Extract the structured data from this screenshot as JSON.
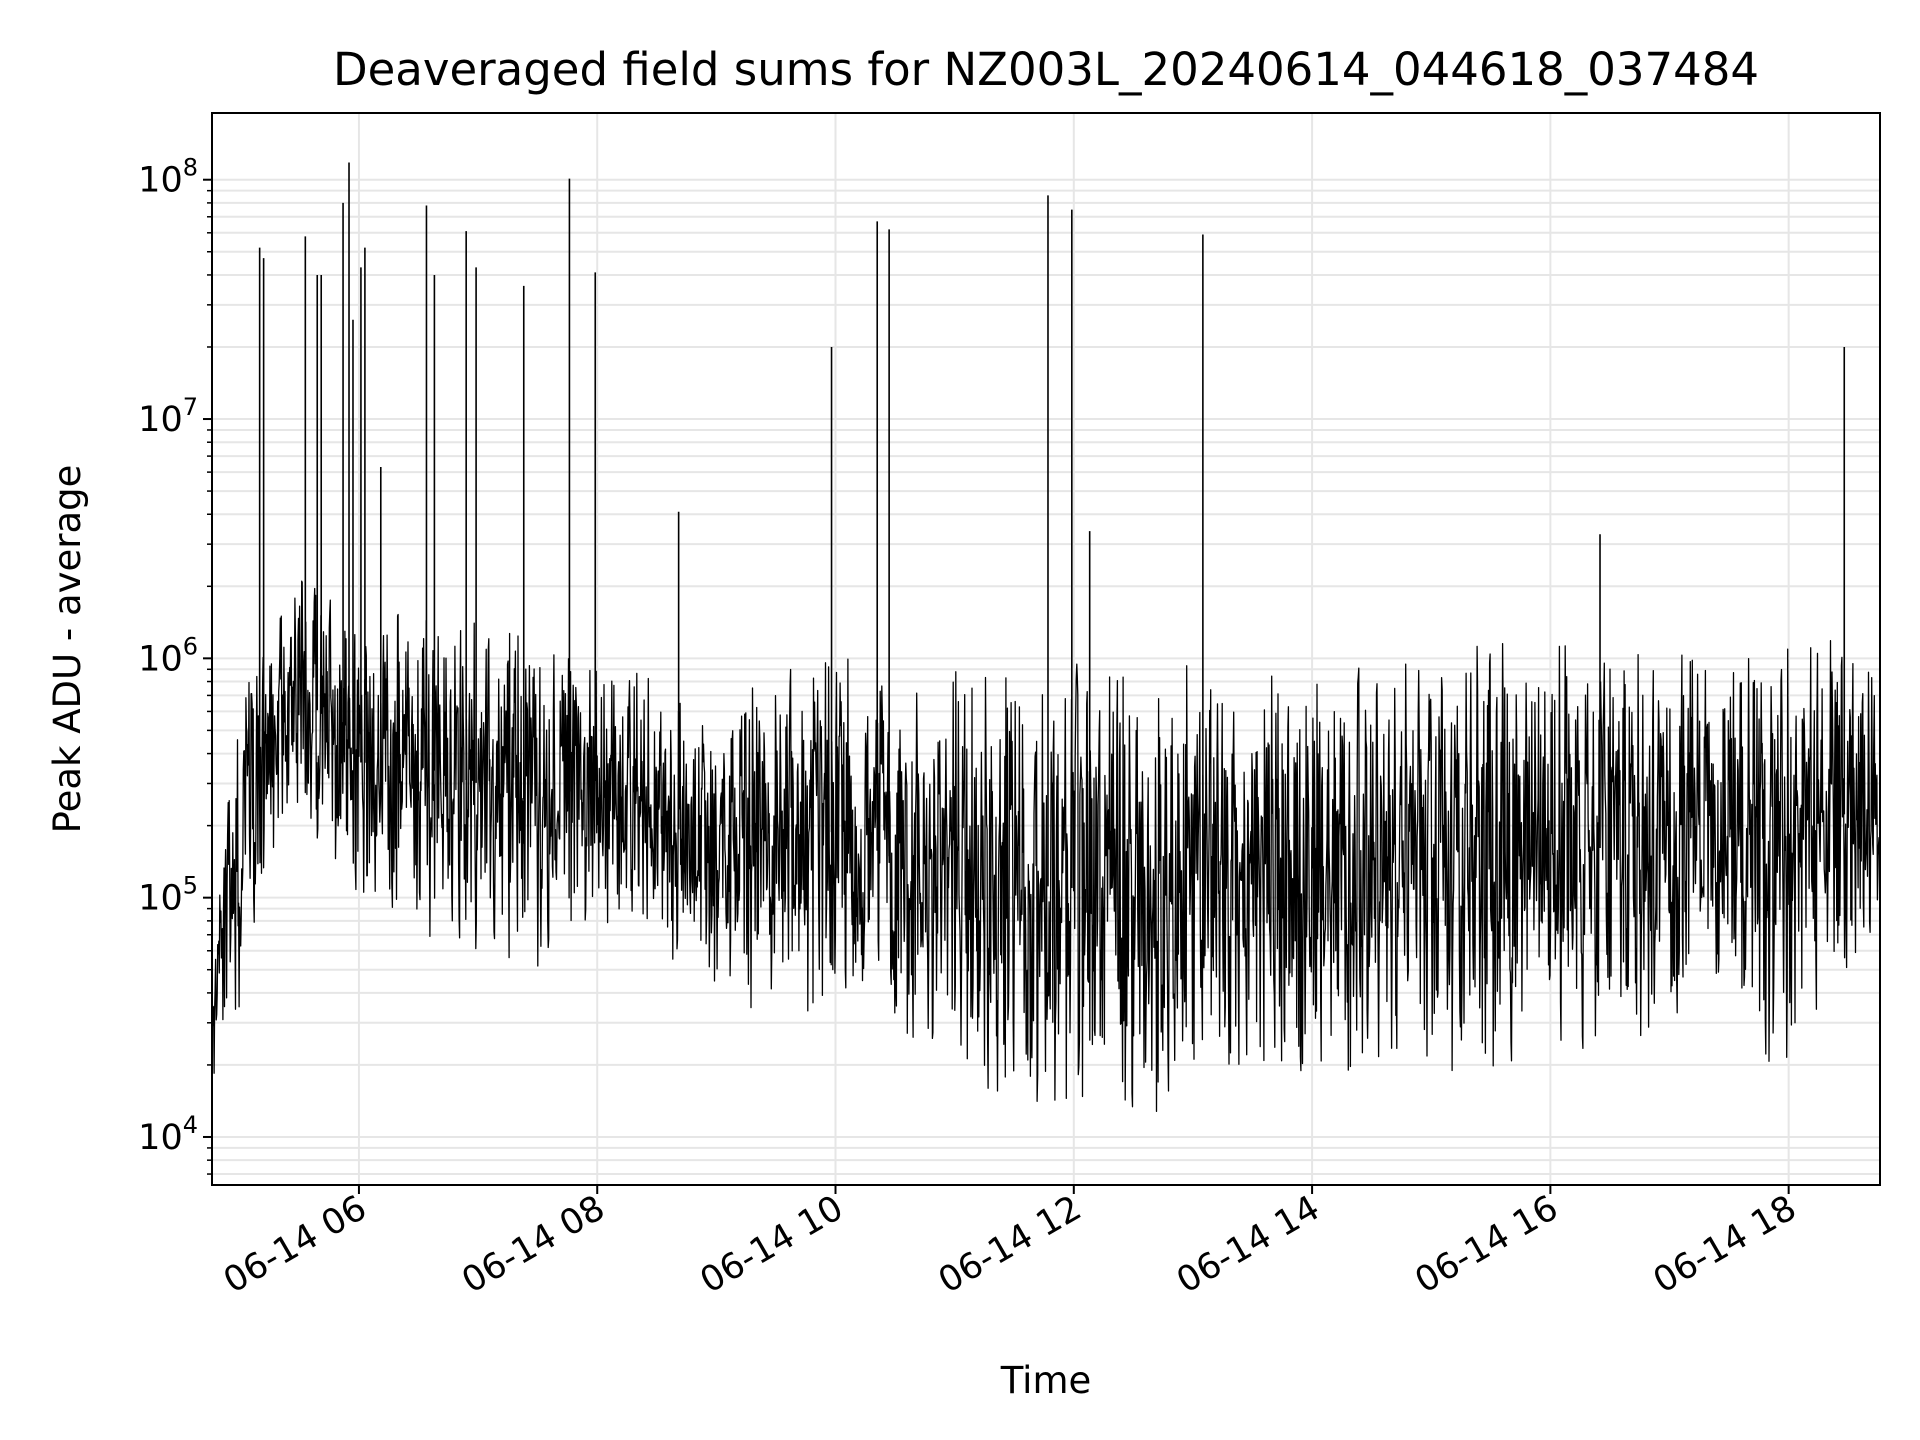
{
  "chart_data": {
    "type": "line",
    "title": "Deaveraged field sums for NZ003L_20240614_044618_037484",
    "xlabel": "Time",
    "ylabel": "Peak ADU - average",
    "yscale": "log",
    "ylim": [
      6300,
      190000000
    ],
    "xlim": [
      "2024-06-14 04:46",
      "2024-06-14 18:46"
    ],
    "grid": true,
    "line_color": "#000000",
    "grid_color": "#e6e6e6",
    "x_ticks": [
      {
        "value": "2024-06-14 06:00",
        "label": "06-14 06"
      },
      {
        "value": "2024-06-14 08:00",
        "label": "06-14 08"
      },
      {
        "value": "2024-06-14 10:00",
        "label": "06-14 10"
      },
      {
        "value": "2024-06-14 12:00",
        "label": "06-14 12"
      },
      {
        "value": "2024-06-14 14:00",
        "label": "06-14 14"
      },
      {
        "value": "2024-06-14 16:00",
        "label": "06-14 16"
      },
      {
        "value": "2024-06-14 18:00",
        "label": "06-14 18"
      }
    ],
    "y_ticks": [
      {
        "value": 10000,
        "base": "10",
        "exp": "4"
      },
      {
        "value": 100000,
        "base": "10",
        "exp": "5"
      },
      {
        "value": 1000000,
        "base": "10",
        "exp": "6"
      },
      {
        "value": 10000000,
        "base": "10",
        "exp": "7"
      },
      {
        "value": 100000000,
        "base": "10",
        "exp": "8"
      }
    ],
    "series": [
      {
        "envelope": [
          {
            "t": "2024-06-14 04:46",
            "lo": 18000,
            "hi": 60000
          },
          {
            "t": "2024-06-14 05:00",
            "lo": 25000,
            "hi": 900000
          },
          {
            "t": "2024-06-14 05:15",
            "lo": 150000,
            "hi": 1500000
          },
          {
            "t": "2024-06-14 05:30",
            "lo": 200000,
            "hi": 2500000
          },
          {
            "t": "2024-06-14 05:45",
            "lo": 150000,
            "hi": 2000000
          },
          {
            "t": "2024-06-14 06:00",
            "lo": 90000,
            "hi": 1500000
          },
          {
            "t": "2024-06-14 06:30",
            "lo": 70000,
            "hi": 1800000
          },
          {
            "t": "2024-06-14 07:00",
            "lo": 60000,
            "hi": 1500000
          },
          {
            "t": "2024-06-14 07:30",
            "lo": 50000,
            "hi": 1200000
          },
          {
            "t": "2024-06-14 08:00",
            "lo": 80000,
            "hi": 1200000
          },
          {
            "t": "2024-06-14 08:30",
            "lo": 60000,
            "hi": 800000
          },
          {
            "t": "2024-06-14 09:00",
            "lo": 40000,
            "hi": 600000
          },
          {
            "t": "2024-06-14 09:30",
            "lo": 30000,
            "hi": 900000
          },
          {
            "t": "2024-06-14 10:00",
            "lo": 30000,
            "hi": 1200000
          },
          {
            "t": "2024-06-14 10:30",
            "lo": 30000,
            "hi": 700000
          },
          {
            "t": "2024-06-14 11:00",
            "lo": 15000,
            "hi": 900000
          },
          {
            "t": "2024-06-14 11:30",
            "lo": 13000,
            "hi": 1000000
          },
          {
            "t": "2024-06-14 12:00",
            "lo": 12000,
            "hi": 1000000
          },
          {
            "t": "2024-06-14 12:30",
            "lo": 12000,
            "hi": 950000
          },
          {
            "t": "2024-06-14 13:00",
            "lo": 13000,
            "hi": 950000
          },
          {
            "t": "2024-06-14 13:30",
            "lo": 14000,
            "hi": 950000
          },
          {
            "t": "2024-06-14 14:00",
            "lo": 15000,
            "hi": 950000
          },
          {
            "t": "2024-06-14 14:30",
            "lo": 15000,
            "hi": 1000000
          },
          {
            "t": "2024-06-14 15:00",
            "lo": 16000,
            "hi": 1100000
          },
          {
            "t": "2024-06-14 15:30",
            "lo": 18000,
            "hi": 1200000
          },
          {
            "t": "2024-06-14 16:00",
            "lo": 20000,
            "hi": 1200000
          },
          {
            "t": "2024-06-14 16:30",
            "lo": 22000,
            "hi": 1200000
          },
          {
            "t": "2024-06-14 17:00",
            "lo": 25000,
            "hi": 1100000
          },
          {
            "t": "2024-06-14 17:30",
            "lo": 50000,
            "hi": 1200000
          },
          {
            "t": "2024-06-14 17:45",
            "lo": 20000,
            "hi": 1200000
          },
          {
            "t": "2024-06-14 18:00",
            "lo": 20000,
            "hi": 1300000
          },
          {
            "t": "2024-06-14 18:30",
            "lo": 40000,
            "hi": 1300000
          },
          {
            "t": "2024-06-14 18:46",
            "lo": 60000,
            "hi": 1000000
          }
        ],
        "spikes": [
          {
            "t": "2024-06-14 05:10",
            "y": 52000000
          },
          {
            "t": "2024-06-14 05:12",
            "y": 47000000
          },
          {
            "t": "2024-06-14 05:33",
            "y": 58000000
          },
          {
            "t": "2024-06-14 05:39",
            "y": 40000000
          },
          {
            "t": "2024-06-14 05:41",
            "y": 40000000
          },
          {
            "t": "2024-06-14 05:52",
            "y": 80000000
          },
          {
            "t": "2024-06-14 05:55",
            "y": 118000000
          },
          {
            "t": "2024-06-14 05:57",
            "y": 26000000
          },
          {
            "t": "2024-06-14 06:01",
            "y": 43000000
          },
          {
            "t": "2024-06-14 06:03",
            "y": 52000000
          },
          {
            "t": "2024-06-14 06:11",
            "y": 6300000
          },
          {
            "t": "2024-06-14 06:34",
            "y": 78000000
          },
          {
            "t": "2024-06-14 06:38",
            "y": 40000000
          },
          {
            "t": "2024-06-14 06:54",
            "y": 61000000
          },
          {
            "t": "2024-06-14 06:59",
            "y": 43000000
          },
          {
            "t": "2024-06-14 07:23",
            "y": 36000000
          },
          {
            "t": "2024-06-14 07:46",
            "y": 101000000
          },
          {
            "t": "2024-06-14 07:59",
            "y": 41000000
          },
          {
            "t": "2024-06-14 08:41",
            "y": 4100000
          },
          {
            "t": "2024-06-14 09:58",
            "y": 20000000
          },
          {
            "t": "2024-06-14 10:21",
            "y": 67000000
          },
          {
            "t": "2024-06-14 10:27",
            "y": 62000000
          },
          {
            "t": "2024-06-14 11:47",
            "y": 86000000
          },
          {
            "t": "2024-06-14 11:59",
            "y": 75000000
          },
          {
            "t": "2024-06-14 12:08",
            "y": 3400000
          },
          {
            "t": "2024-06-14 13:05",
            "y": 59000000
          },
          {
            "t": "2024-06-14 16:25",
            "y": 3300000
          },
          {
            "t": "2024-06-14 18:28",
            "y": 20000000
          }
        ]
      }
    ]
  }
}
